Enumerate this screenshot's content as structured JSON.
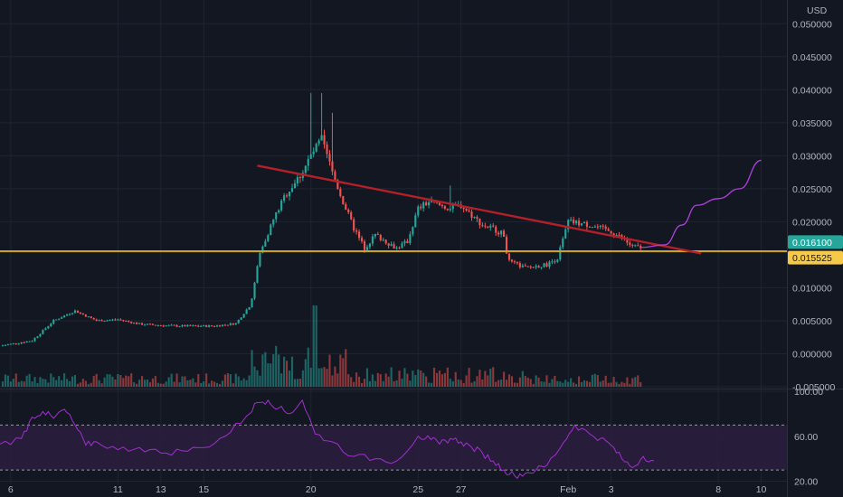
{
  "currency_label": "USD",
  "colors": {
    "background": "#131722",
    "grid": "#1f2433",
    "up": "#26a69a",
    "down": "#ef5350",
    "trendline": "#b2202a",
    "support": "#c9a227",
    "projection": "#b040e0",
    "rsi": "#a32ed1",
    "rsi_band": "#2a1e3d",
    "axis_text": "#b2b5be",
    "current_price_tag": "#26a69a",
    "support_tag": "#f7c948"
  },
  "price_tags": [
    {
      "label": "0.016100",
      "value": 0.0161,
      "color": "#26a69a",
      "text_color": "#ffffff"
    },
    {
      "label": "0.015525",
      "value": 0.015525,
      "color": "#f7c948",
      "text_color": "#131722"
    }
  ],
  "chart_data": [
    {
      "type": "candlestick",
      "ylim": [
        -0.005,
        0.0525
      ],
      "y_ticks": [
        {
          "label": "0.050000",
          "value": 0.05
        },
        {
          "label": "0.045000",
          "value": 0.045
        },
        {
          "label": "0.040000",
          "value": 0.04
        },
        {
          "label": "0.035000",
          "value": 0.035
        },
        {
          "label": "0.030000",
          "value": 0.03
        },
        {
          "label": "0.025000",
          "value": 0.025
        },
        {
          "label": "0.020000",
          "value": 0.02
        },
        {
          "label": "0.010000",
          "value": 0.01
        },
        {
          "label": "0.005000",
          "value": 0.005
        },
        {
          "label": "0.000000",
          "value": 0.0
        },
        {
          "label": "-0.005000",
          "value": -0.005
        }
      ],
      "x_ticks": [
        {
          "label": "6",
          "day": 6
        },
        {
          "label": "11",
          "day": 11
        },
        {
          "label": "13",
          "day": 13
        },
        {
          "label": "15",
          "day": 15
        },
        {
          "label": "20",
          "day": 20
        },
        {
          "label": "25",
          "day": 25
        },
        {
          "label": "27",
          "day": 27
        },
        {
          "label": "Feb",
          "day": 32
        },
        {
          "label": "3",
          "day": 34
        },
        {
          "label": "8",
          "day": 39
        },
        {
          "label": "10",
          "day": 41
        }
      ],
      "xlim_days": [
        5.5,
        42.2
      ],
      "price_path": [
        [
          5.5,
          0.0012
        ],
        [
          7.0,
          0.002
        ],
        [
          8.0,
          0.005
        ],
        [
          9.0,
          0.0065
        ],
        [
          10.0,
          0.005
        ],
        [
          11.0,
          0.0052
        ],
        [
          12.0,
          0.0045
        ],
        [
          13.0,
          0.0043
        ],
        [
          14.0,
          0.0042
        ],
        [
          15.5,
          0.0042
        ],
        [
          16.5,
          0.0046
        ],
        [
          17.2,
          0.0075
        ],
        [
          17.6,
          0.015
        ],
        [
          18.2,
          0.02
        ],
        [
          18.8,
          0.024
        ],
        [
          19.5,
          0.027
        ],
        [
          20.0,
          0.03
        ],
        [
          20.5,
          0.0325
        ],
        [
          21.0,
          0.0275
        ],
        [
          21.5,
          0.023
        ],
        [
          22.0,
          0.019
        ],
        [
          22.5,
          0.016
        ],
        [
          23.0,
          0.018
        ],
        [
          24.0,
          0.016
        ],
        [
          24.5,
          0.017
        ],
        [
          25.0,
          0.022
        ],
        [
          25.5,
          0.023
        ],
        [
          26.0,
          0.0225
        ],
        [
          26.5,
          0.022
        ],
        [
          27.0,
          0.0225
        ],
        [
          27.5,
          0.021
        ],
        [
          28.0,
          0.0195
        ],
        [
          28.5,
          0.019
        ],
        [
          29.0,
          0.018
        ],
        [
          29.2,
          0.014
        ],
        [
          30.0,
          0.013
        ],
        [
          31.0,
          0.0135
        ],
        [
          31.5,
          0.0145
        ],
        [
          32.0,
          0.02
        ],
        [
          33.0,
          0.0195
        ],
        [
          34.0,
          0.0185
        ],
        [
          34.5,
          0.0175
        ],
        [
          35.0,
          0.0162
        ],
        [
          35.4,
          0.0161
        ]
      ],
      "spikes": [
        {
          "day": 20.0,
          "high": 0.0395
        },
        {
          "day": 20.5,
          "high": 0.0395
        },
        {
          "day": 21.0,
          "high": 0.0365
        },
        {
          "day": 26.5,
          "high": 0.0255
        }
      ],
      "trendline": {
        "from": [
          17.5,
          0.0285
        ],
        "to": [
          38.2,
          0.0152
        ]
      },
      "support_line": {
        "value": 0.015525,
        "from_day": 5.5,
        "to_day": 42.2
      },
      "projection": [
        [
          35.4,
          0.0161
        ],
        [
          36.5,
          0.0165
        ],
        [
          37.3,
          0.0195
        ],
        [
          38.0,
          0.0225
        ],
        [
          39.0,
          0.0235
        ],
        [
          40.0,
          0.025
        ],
        [
          41.0,
          0.0293
        ]
      ]
    },
    {
      "type": "volume",
      "note_shape": "bars in lower part of main pane"
    },
    {
      "type": "line",
      "name": "",
      "ylim": [
        18,
        100
      ],
      "y_ticks": [
        {
          "label": "100.00",
          "value": 100
        },
        {
          "label": "60.00",
          "value": 60
        },
        {
          "label": "20.00",
          "value": 20
        }
      ],
      "band": [
        30,
        70
      ],
      "points": [
        [
          5.5,
          53
        ],
        [
          6.5,
          58
        ],
        [
          7.0,
          77
        ],
        [
          7.5,
          82
        ],
        [
          8.0,
          76
        ],
        [
          8.5,
          84
        ],
        [
          9.0,
          70
        ],
        [
          9.5,
          52
        ],
        [
          10.0,
          55
        ],
        [
          11.0,
          48
        ],
        [
          12.0,
          50
        ],
        [
          13.0,
          45
        ],
        [
          14.0,
          47
        ],
        [
          15.0,
          50
        ],
        [
          16.0,
          60
        ],
        [
          17.0,
          78
        ],
        [
          17.5,
          90
        ],
        [
          18.0,
          92
        ],
        [
          18.5,
          85
        ],
        [
          19.0,
          80
        ],
        [
          19.6,
          92
        ],
        [
          20.2,
          62
        ],
        [
          21.0,
          55
        ],
        [
          22.0,
          42
        ],
        [
          23.0,
          40
        ],
        [
          24.0,
          38
        ],
        [
          25.0,
          60
        ],
        [
          25.6,
          57
        ],
        [
          26.0,
          53
        ],
        [
          26.5,
          58
        ],
        [
          27.0,
          55
        ],
        [
          27.5,
          50
        ],
        [
          28.0,
          45
        ],
        [
          28.5,
          38
        ],
        [
          29.0,
          30
        ],
        [
          29.5,
          25
        ],
        [
          30.0,
          27
        ],
        [
          30.5,
          30
        ],
        [
          31.0,
          34
        ],
        [
          31.8,
          55
        ],
        [
          32.3,
          70
        ],
        [
          33.0,
          62
        ],
        [
          33.5,
          58
        ],
        [
          34.0,
          52
        ],
        [
          34.5,
          40
        ],
        [
          35.0,
          32
        ],
        [
          35.5,
          42
        ],
        [
          36.0,
          38
        ]
      ]
    }
  ]
}
